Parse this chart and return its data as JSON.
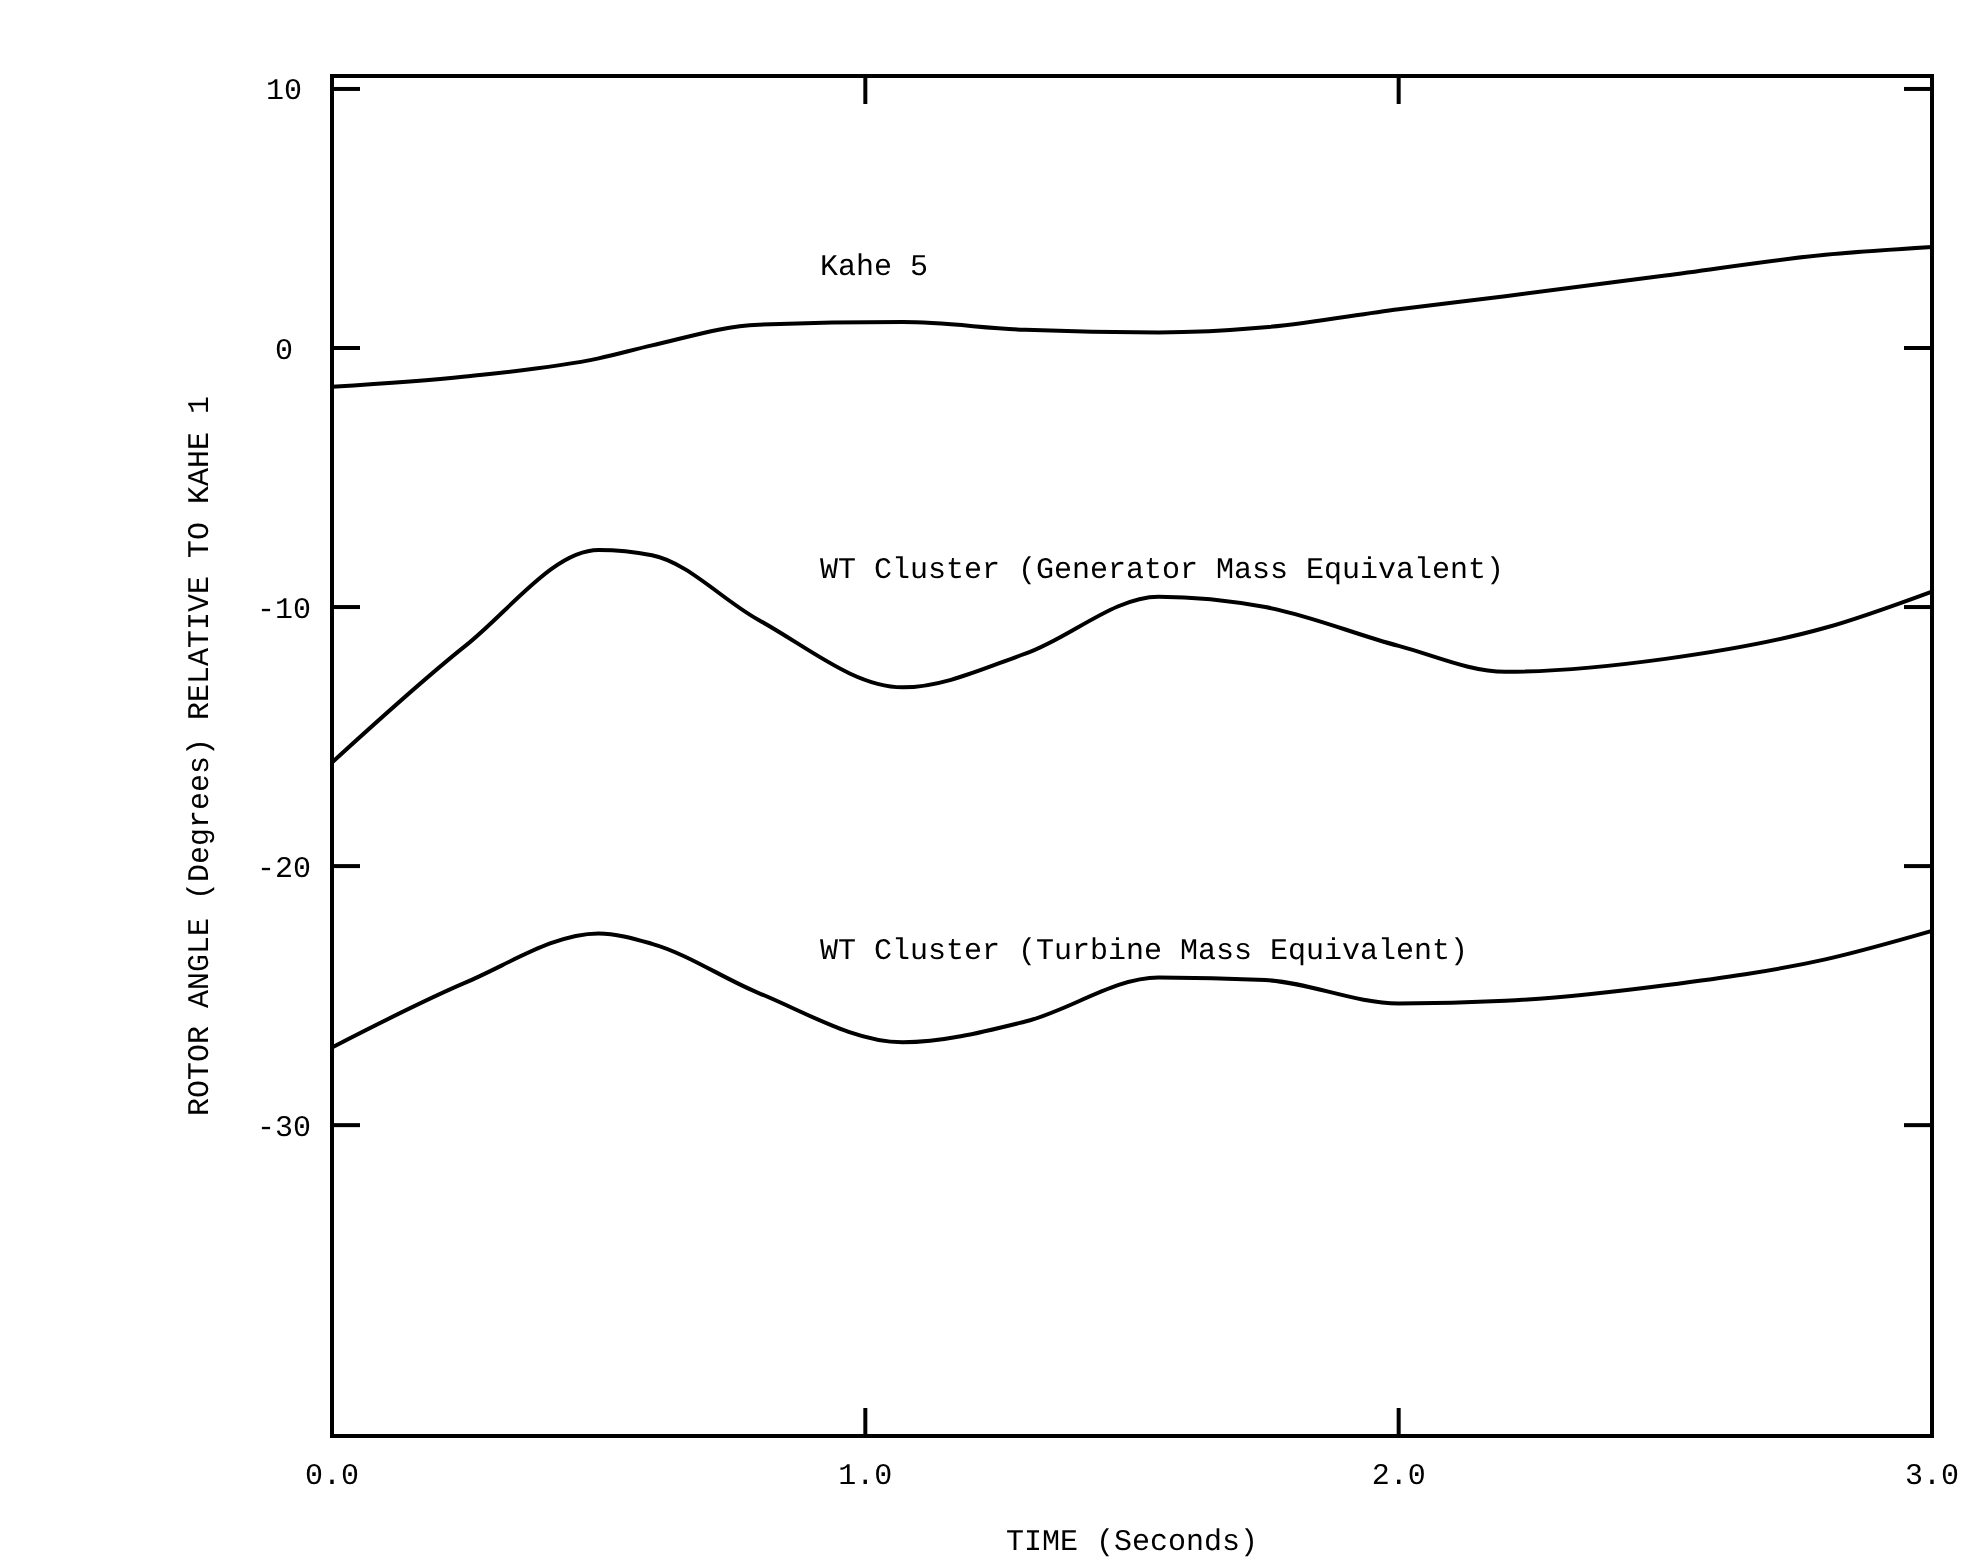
{
  "chart_data": {
    "type": "line",
    "xlabel": "TIME (Seconds)",
    "ylabel": "ROTOR ANGLE (Degrees) RELATIVE TO KAHE 1",
    "xlim": [
      0,
      3
    ],
    "ylim": [
      -42,
      10.5
    ],
    "xticks": [
      {
        "value": 0,
        "label": "0.0"
      },
      {
        "value": 1,
        "label": "1.0"
      },
      {
        "value": 2,
        "label": "2.0"
      },
      {
        "value": 3,
        "label": "3.0"
      }
    ],
    "yticks": [
      10,
      0,
      -10,
      -20,
      -30
    ],
    "grid": false,
    "marker": "none",
    "line_style": "solid",
    "x": [
      0,
      0.25,
      0.5,
      0.6,
      0.8,
      1.07,
      1.3,
      1.55,
      1.75,
      2.0,
      2.2,
      2.5,
      2.8,
      3.0
    ],
    "series": [
      {
        "name": "Kahe 5",
        "color": "#000000",
        "values": [
          -1.5,
          -1.1,
          -0.4,
          0.1,
          0.9,
          1.0,
          0.7,
          0.6,
          0.8,
          1.5,
          2.0,
          2.8,
          3.6,
          3.9
        ]
      },
      {
        "name": "WT Cluster (Generator Mass Equivalent)",
        "color": "#000000",
        "values": [
          -16,
          -11.5,
          -7.8,
          -8.0,
          -10.5,
          -13.1,
          -11.8,
          -9.6,
          -10.0,
          -11.5,
          -12.5,
          -12.0,
          -10.8,
          -9.4
        ]
      },
      {
        "name": "WT Cluster (Turbine Mass Equivalent)",
        "color": "#000000",
        "values": [
          -27,
          -24.5,
          -22.6,
          -23.0,
          -24.9,
          -26.8,
          -26.0,
          -24.3,
          -24.4,
          -25.3,
          -25.2,
          -24.6,
          -23.6,
          -22.5
        ]
      }
    ]
  }
}
